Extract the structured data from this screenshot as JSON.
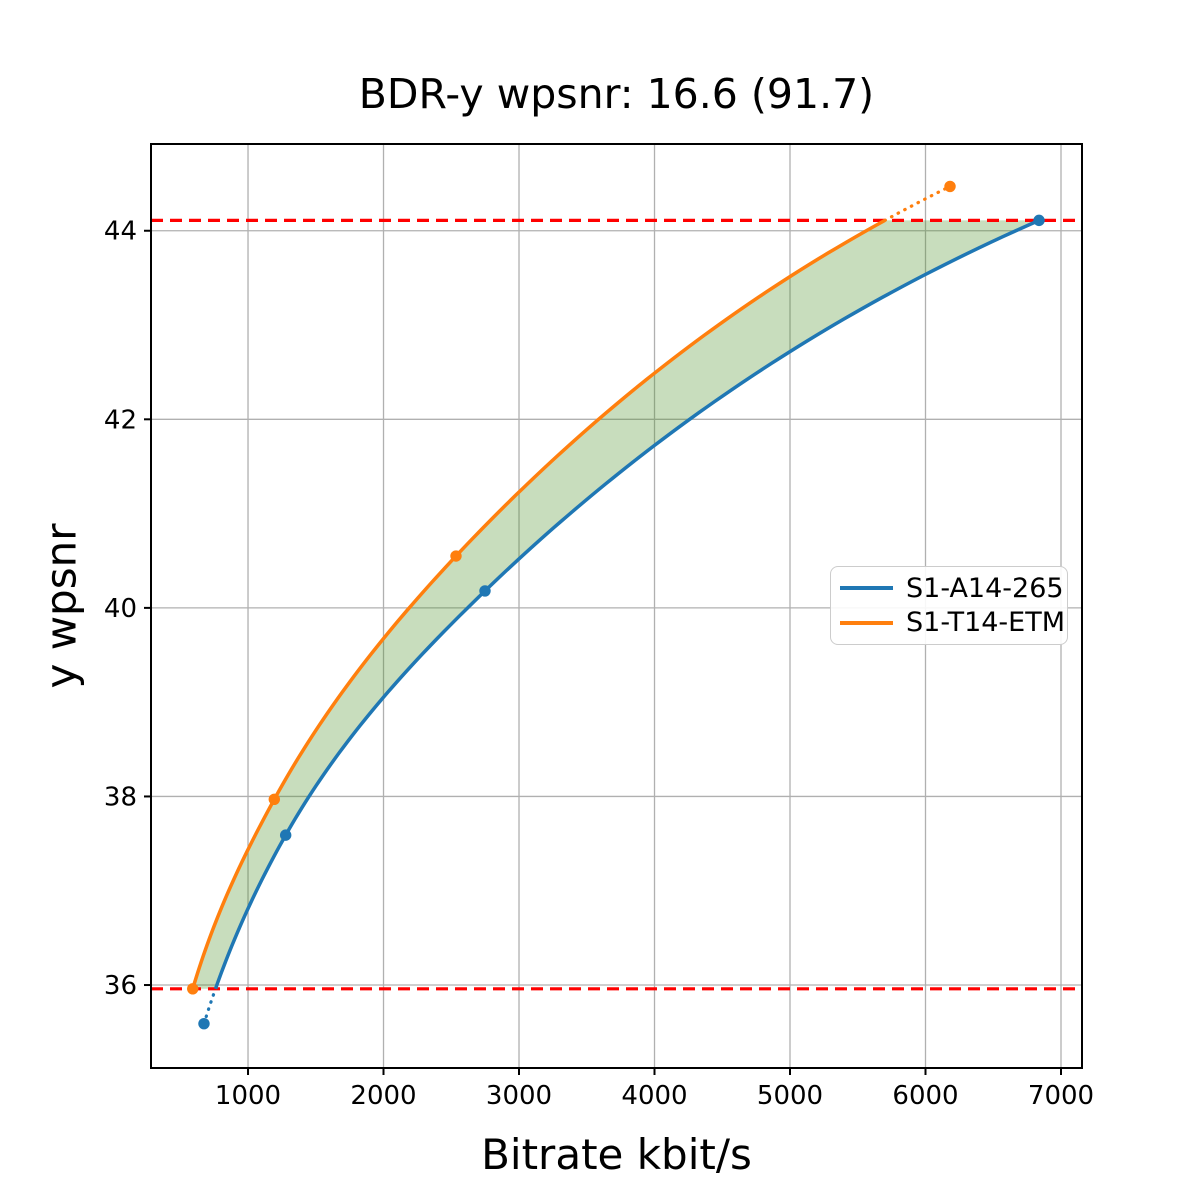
{
  "chart_data": {
    "type": "line",
    "title": "BDR-y wpsnr: 16.6 (91.7)",
    "xlabel": "Bitrate kbit/s",
    "ylabel": "y wpsnr",
    "xlim": [
      284,
      7155
    ],
    "ylim": [
      35.12,
      44.92
    ],
    "x_ticks": [
      1000,
      2000,
      3000,
      4000,
      5000,
      6000,
      7000
    ],
    "y_ticks": [
      36,
      38,
      40,
      42,
      44
    ],
    "grid": true,
    "grid_color": "#b0b0b0",
    "legend_position": "center right",
    "series": [
      {
        "name": "S1-A14-265",
        "color": "#1f77b4",
        "marker": "circle",
        "points": [
          [
            675,
            35.59
          ],
          [
            1278,
            37.59
          ],
          [
            2749,
            40.18
          ],
          [
            6838,
            44.11
          ]
        ]
      },
      {
        "name": "S1-T14-ETM",
        "color": "#ff7f0e",
        "marker": "circle",
        "points": [
          [
            592,
            35.96
          ],
          [
            1194,
            37.97
          ],
          [
            2535,
            40.55
          ],
          [
            6181,
            44.47
          ]
        ]
      }
    ],
    "overlap_bounds": {
      "lower_psnr": 35.96,
      "upper_psnr": 44.11,
      "line_color": "#ff0000",
      "line_style": "dashed"
    },
    "fill_between": {
      "color_rgba": [
        72,
        142,
        35,
        0.3
      ],
      "from_psnr": 35.96,
      "to_psnr": 44.11
    }
  }
}
